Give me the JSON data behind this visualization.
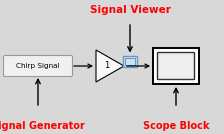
{
  "bg_color": "#d8d8d8",
  "signal_label": "Chirp Signal",
  "signal_generator_label": "Signal Generator",
  "signal_viewer_label": "Signal Viewer",
  "scope_label": "Scope Block",
  "gain_value": "1",
  "arrow_color": "#000000",
  "gain_triangle_facecolor": "#f8f8f8",
  "gain_triangle_edgecolor": "#000000",
  "src_box_facecolor": "#f0f0f0",
  "src_box_edgecolor": "#999999",
  "scope_facecolor": "#ffffff",
  "scope_edgecolor": "#000000",
  "viewer_box_facecolor": "#cce0f0",
  "viewer_box_edgecolor": "#6699cc",
  "red_label_color": "#ff0000",
  "fig_w": 2.24,
  "fig_h": 1.34,
  "dpi": 100
}
